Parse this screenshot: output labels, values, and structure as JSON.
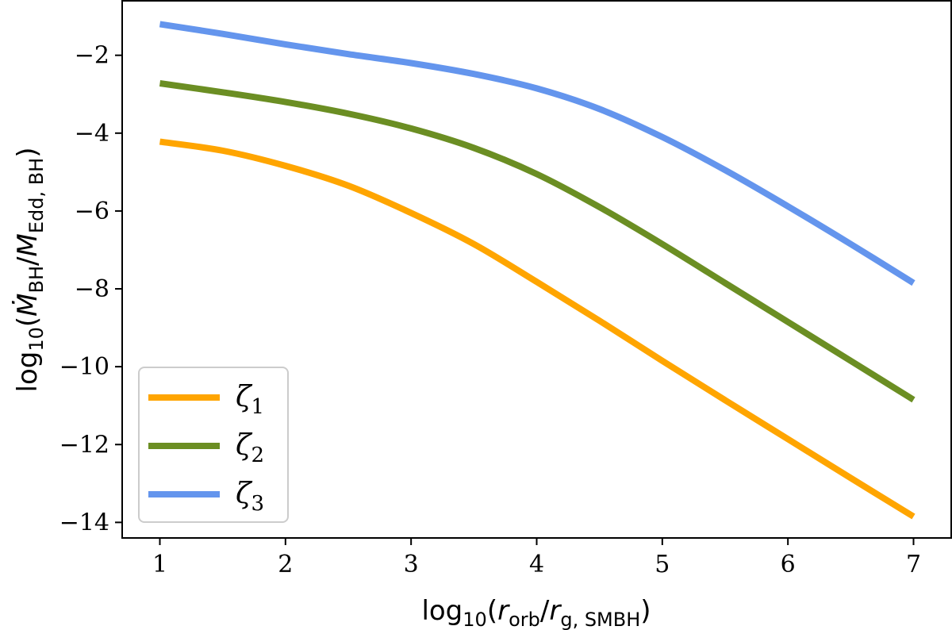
{
  "chart_data": {
    "type": "line",
    "xlabel": {
      "prefix": "log",
      "prefix_sub": "10",
      "open": "(",
      "num": "r",
      "num_sub": "orb",
      "slash": "/",
      "den": "r",
      "den_sub": "g, SMBH",
      "close": ")"
    },
    "ylabel": {
      "prefix": "log",
      "prefix_sub": "10",
      "open": "(",
      "num": "Ṁ",
      "num_sub": "BH",
      "slash": "/",
      "den": "M",
      "den_sub": "Edd, BH",
      "close": ")"
    },
    "xlim": [
      0.7,
      7.3
    ],
    "ylim": [
      -14.4,
      -0.6
    ],
    "xticks": [
      1,
      2,
      3,
      4,
      5,
      6,
      7
    ],
    "yticks": [
      -2,
      -4,
      -6,
      -8,
      -10,
      -12,
      -14
    ],
    "xtick_labels": [
      "1",
      "2",
      "3",
      "4",
      "5",
      "6",
      "7"
    ],
    "ytick_labels": [
      "−2",
      "−4",
      "−6",
      "−8",
      "−10",
      "−12",
      "−14"
    ],
    "legend_position": "lower-left",
    "grid": false,
    "series": [
      {
        "name": "ζ",
        "name_sub": "1",
        "color": "#FFA500",
        "x": [
          1.0,
          1.5,
          2.0,
          2.5,
          3.0,
          3.5,
          4.0,
          4.5,
          5.0,
          5.5,
          6.0,
          6.5,
          7.0
        ],
        "y": [
          -4.22,
          -4.45,
          -4.84,
          -5.35,
          -6.05,
          -6.85,
          -7.82,
          -8.82,
          -9.85,
          -10.86,
          -11.86,
          -12.86,
          -13.85
        ]
      },
      {
        "name": "ζ",
        "name_sub": "2",
        "color": "#6B8E23",
        "x": [
          1.0,
          1.5,
          2.0,
          2.5,
          3.0,
          3.5,
          4.0,
          4.5,
          5.0,
          5.5,
          6.0,
          6.5,
          7.0
        ],
        "y": [
          -2.72,
          -2.95,
          -3.2,
          -3.5,
          -3.88,
          -4.38,
          -5.05,
          -5.9,
          -6.85,
          -7.85,
          -8.85,
          -9.85,
          -10.85
        ]
      },
      {
        "name": "ζ",
        "name_sub": "3",
        "color": "#6495ED",
        "x": [
          1.0,
          1.5,
          2.0,
          2.5,
          3.0,
          3.5,
          4.0,
          4.5,
          5.0,
          5.5,
          6.0,
          6.5,
          7.0
        ],
        "y": [
          -1.2,
          -1.45,
          -1.72,
          -1.97,
          -2.2,
          -2.48,
          -2.85,
          -3.38,
          -4.1,
          -4.95,
          -5.88,
          -6.85,
          -7.85
        ]
      }
    ]
  }
}
